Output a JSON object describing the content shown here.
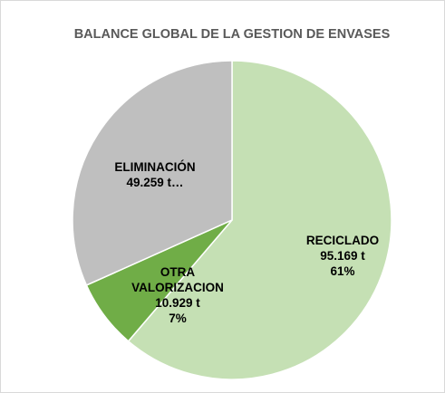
{
  "chart_data": {
    "type": "pie",
    "title": "BALANCE GLOBAL DE LA GESTION DE ENVASES",
    "categories": [
      "RECICLADO",
      "OTRA VALORIZACION",
      "ELIMINACIÓN"
    ],
    "values": [
      95169,
      10929,
      49259
    ],
    "value_labels": [
      "95.169 t",
      "10.929 t",
      "49.259 t…"
    ],
    "percent_labels": [
      "61%",
      "7%",
      null
    ],
    "colors": [
      "#c5e0b4",
      "#70ad47",
      "#bfbfbf"
    ]
  }
}
